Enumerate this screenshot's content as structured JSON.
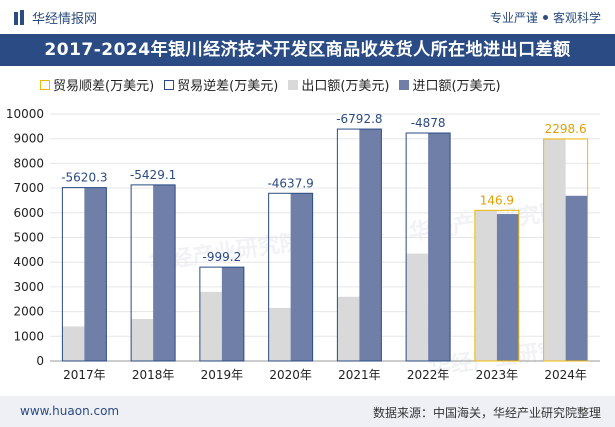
{
  "brand": {
    "name": "华经情报网"
  },
  "slogan": {
    "left": "专业严谨",
    "right": "客观科学"
  },
  "title": "2017-2024年银川经济技术开发区商品收发货人所在地进出口差额",
  "legend": [
    {
      "label": "贸易顺差(万美元)",
      "key": "surplus"
    },
    {
      "label": "贸易逆差(万美元)",
      "key": "deficit"
    },
    {
      "label": "出口额(万美元)",
      "key": "export"
    },
    {
      "label": "进口额(万美元)",
      "key": "import"
    }
  ],
  "colors": {
    "surplus": "#f2b705",
    "deficit": "#2a4b83",
    "export": "#d9d9d9",
    "import": "#6f7fa8",
    "title_bg": "#2a4b83"
  },
  "chart_data": {
    "type": "bar",
    "categories": [
      "2017年",
      "2018年",
      "2019年",
      "2020年",
      "2021年",
      "2022年",
      "2023年",
      "2024年"
    ],
    "ylim": [
      0,
      10000
    ],
    "yticks": [
      0,
      1000,
      2000,
      3000,
      4000,
      5000,
      6000,
      7000,
      8000,
      9000,
      10000
    ],
    "series": [
      {
        "name": "出口额(万美元)",
        "values": [
          1400,
          1700,
          2800,
          2150,
          2600,
          4350,
          6100,
          8990
        ]
      },
      {
        "name": "进口额(万美元)",
        "values": [
          7020,
          7130,
          3800,
          6790,
          9390,
          9230,
          5950,
          6690
        ]
      }
    ],
    "balance": [
      {
        "value": -5620.3,
        "label": "-5620.3",
        "kind": "deficit"
      },
      {
        "value": -5429.1,
        "label": "-5429.1",
        "kind": "deficit"
      },
      {
        "value": -999.2,
        "label": "-999.2",
        "kind": "deficit"
      },
      {
        "value": -4637.9,
        "label": "-4637.9",
        "kind": "deficit"
      },
      {
        "value": -6792.8,
        "label": "-6792.8",
        "kind": "deficit"
      },
      {
        "value": -4878,
        "label": "-4878",
        "kind": "deficit"
      },
      {
        "value": 146.9,
        "label": "146.9",
        "kind": "surplus"
      },
      {
        "value": 2298.6,
        "label": "2298.6",
        "kind": "surplus"
      }
    ]
  },
  "watermark": "华经产业研究院",
  "footer": {
    "url": "www.huaon.com",
    "source": "数据来源：中国海关，华经产业研究院整理"
  }
}
